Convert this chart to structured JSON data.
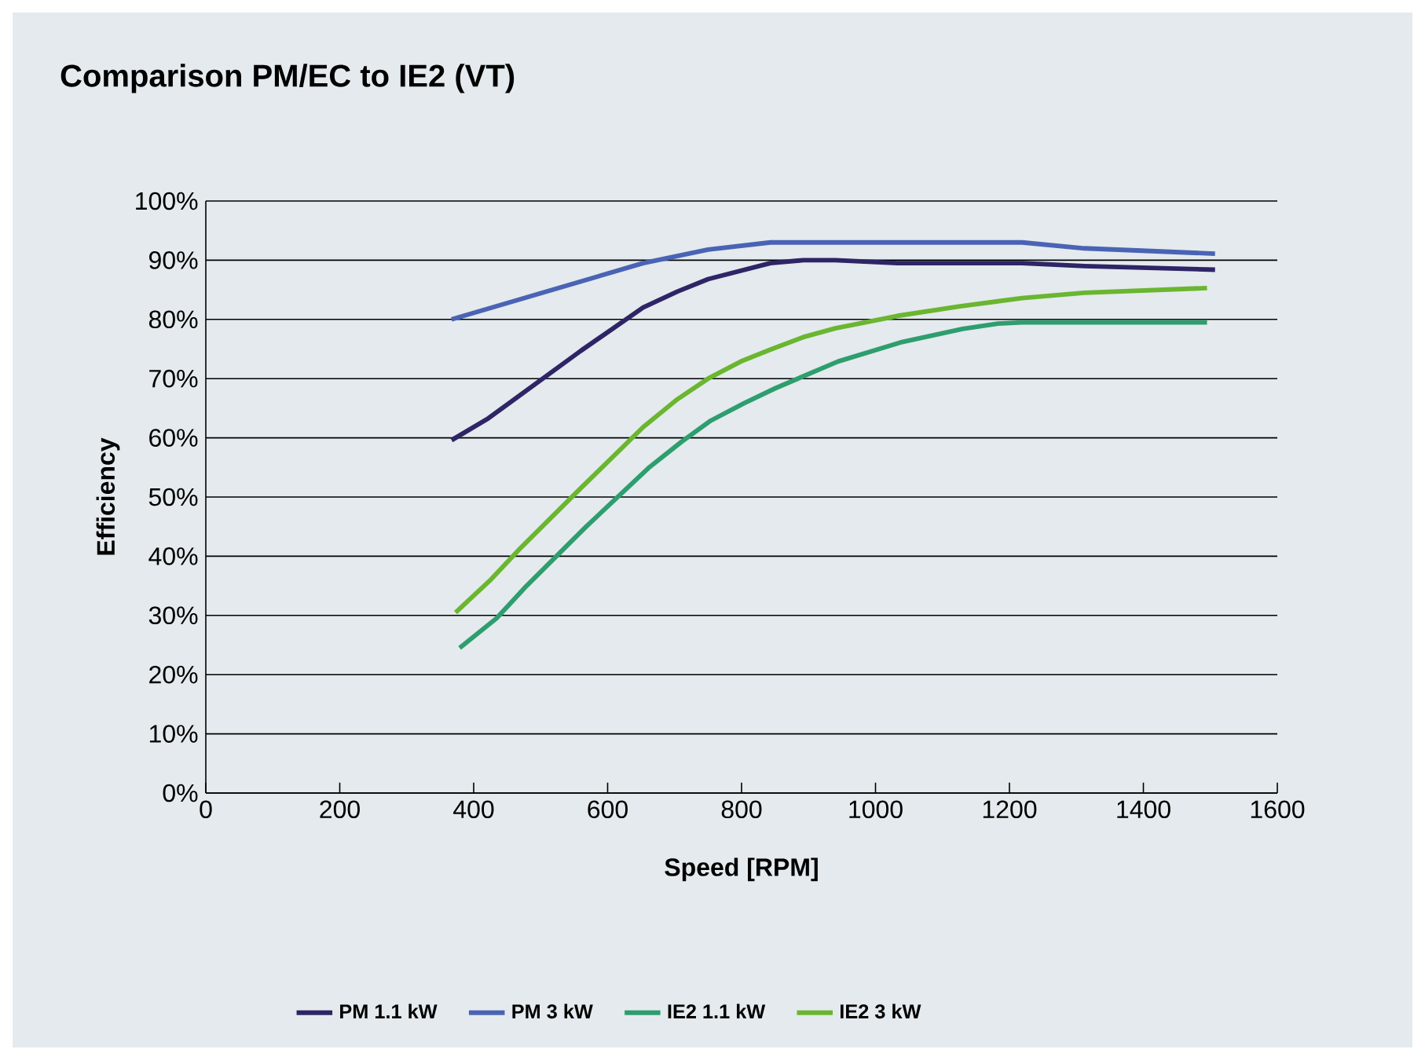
{
  "chart_data": {
    "type": "line",
    "title": "Comparison PM/EC to IE2 (VT)",
    "xlabel": "Speed [RPM]",
    "ylabel": "Efficiency",
    "xlim": [
      0,
      1600
    ],
    "xticks": [
      0,
      200,
      400,
      600,
      800,
      1000,
      1200,
      1400,
      1600
    ],
    "ylim": [
      0,
      100
    ],
    "yticks": [
      {
        "value": 0,
        "label": "0%"
      },
      {
        "value": 10,
        "label": "10%"
      },
      {
        "value": 20,
        "label": "20%"
      },
      {
        "value": 30,
        "label": "30%"
      },
      {
        "value": 40,
        "label": "40%"
      },
      {
        "value": 50,
        "label": "50%"
      },
      {
        "value": 60,
        "label": "60%"
      },
      {
        "value": 70,
        "label": "70%"
      },
      {
        "value": 80,
        "label": "80%"
      },
      {
        "value": 90,
        "label": "90%"
      },
      {
        "value": 100,
        "label": "100%"
      }
    ],
    "grid": "y",
    "legend": "bottom",
    "marker": "none",
    "line_style": "solid",
    "series": [
      {
        "name": "PM 1.1 kW",
        "color": "#2e2466",
        "x": [
          367,
          422,
          560,
          653,
          704,
          750,
          843,
          892,
          940,
          1033,
          1126,
          1219,
          1312,
          1507
        ],
        "values": [
          59.6,
          63.3,
          74.7,
          82,
          84.7,
          86.8,
          89.5,
          90,
          90,
          89.5,
          89.5,
          89.5,
          89,
          88.4
        ]
      },
      {
        "name": "PM 3 kW",
        "color": "#4a63b5",
        "x": [
          367,
          653,
          750,
          843,
          940,
          1033,
          1126,
          1219,
          1312,
          1507
        ],
        "values": [
          80,
          89.5,
          91.8,
          93,
          93,
          93,
          93,
          93,
          92,
          91.1
        ]
      },
      {
        "name": "IE2 1.1 kW",
        "color": "#2e9e6e",
        "x": [
          379,
          434,
          479,
          568,
          661,
          710,
          754,
          803,
          851,
          944,
          1037,
          1130,
          1183,
          1219,
          1495
        ],
        "values": [
          24.5,
          29.5,
          35,
          45,
          54.9,
          59.3,
          62.9,
          65.8,
          68.4,
          72.9,
          76.1,
          78.4,
          79.3,
          79.5,
          79.5
        ]
      },
      {
        "name": "IE2 3 kW",
        "color": "#6ab630",
        "x": [
          373,
          426,
          471,
          560,
          653,
          704,
          750,
          799,
          843,
          892,
          940,
          1033,
          1126,
          1219,
          1312,
          1495
        ],
        "values": [
          30.5,
          36.1,
          41.5,
          51.5,
          61.8,
          66.5,
          70,
          72.9,
          74.9,
          77,
          78.5,
          80.6,
          82.2,
          83.6,
          84.5,
          85.3
        ]
      }
    ]
  }
}
